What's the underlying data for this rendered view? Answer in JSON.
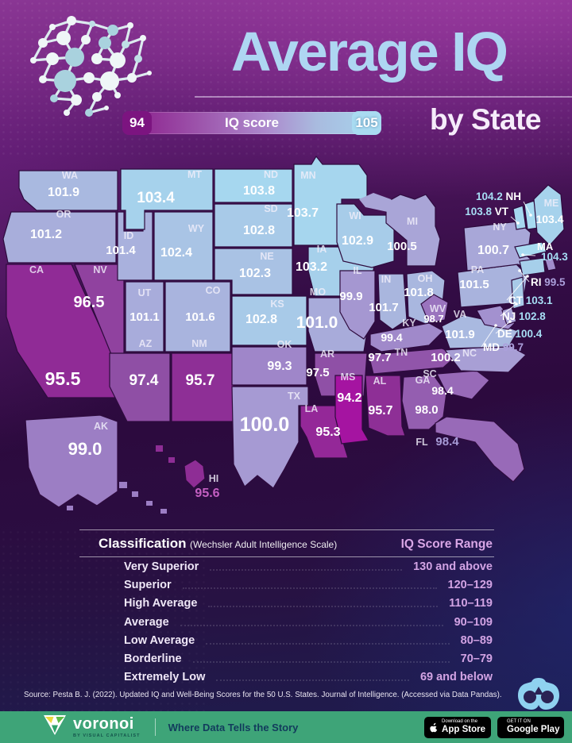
{
  "header": {
    "title": "Average IQ",
    "subtitle": "by State",
    "legend": {
      "min": "94",
      "max": "105",
      "label": "IQ score"
    }
  },
  "colors": {
    "title_blue": "#AED6F2",
    "scale_low": "#A810A2",
    "scale_high": "#ABDFF4",
    "footer_green": "#3EA478",
    "range_pink": "#D2A3E4"
  },
  "chart_data": {
    "type": "choropleth-map",
    "title": "Average IQ by State",
    "legend_label": "IQ score",
    "scale": {
      "min": 94,
      "max": 105
    },
    "states": [
      {
        "abbr": "WA",
        "value": 101.9
      },
      {
        "abbr": "OR",
        "value": 101.2
      },
      {
        "abbr": "CA",
        "value": 95.5
      },
      {
        "abbr": "NV",
        "value": 96.5
      },
      {
        "abbr": "ID",
        "value": 101.4
      },
      {
        "abbr": "MT",
        "value": 103.4
      },
      {
        "abbr": "WY",
        "value": 102.4
      },
      {
        "abbr": "UT",
        "value": 101.1
      },
      {
        "abbr": "CO",
        "value": 101.6
      },
      {
        "abbr": "AZ",
        "value": 97.4
      },
      {
        "abbr": "NM",
        "value": 95.7
      },
      {
        "abbr": "ND",
        "value": 103.8
      },
      {
        "abbr": "SD",
        "value": 102.8
      },
      {
        "abbr": "NE",
        "value": 102.3
      },
      {
        "abbr": "KS",
        "value": 102.8
      },
      {
        "abbr": "OK",
        "value": 99.3
      },
      {
        "abbr": "TX",
        "value": 100.0
      },
      {
        "abbr": "MN",
        "value": 103.7
      },
      {
        "abbr": "IA",
        "value": 103.2
      },
      {
        "abbr": "MO",
        "value": 101.0
      },
      {
        "abbr": "AR",
        "value": 97.5
      },
      {
        "abbr": "LA",
        "value": 95.3
      },
      {
        "abbr": "WI",
        "value": 102.9
      },
      {
        "abbr": "IL",
        "value": 99.9
      },
      {
        "abbr": "MI",
        "value": 100.5
      },
      {
        "abbr": "IN",
        "value": 101.7
      },
      {
        "abbr": "OH",
        "value": 101.8
      },
      {
        "abbr": "KY",
        "value": 99.4
      },
      {
        "abbr": "TN",
        "value": 97.7
      },
      {
        "abbr": "MS",
        "value": 94.2
      },
      {
        "abbr": "AL",
        "value": 95.7
      },
      {
        "abbr": "GA",
        "value": 98.0
      },
      {
        "abbr": "FL",
        "value": 98.4
      },
      {
        "abbr": "SC",
        "value": 98.4
      },
      {
        "abbr": "NC",
        "value": 100.2
      },
      {
        "abbr": "VA",
        "value": 101.9
      },
      {
        "abbr": "WV",
        "value": 98.7
      },
      {
        "abbr": "MD",
        "value": 99.7
      },
      {
        "abbr": "DE",
        "value": 100.4
      },
      {
        "abbr": "PA",
        "value": 101.5
      },
      {
        "abbr": "NJ",
        "value": 102.8
      },
      {
        "abbr": "NY",
        "value": 100.7
      },
      {
        "abbr": "CT",
        "value": 103.1
      },
      {
        "abbr": "RI",
        "value": 99.5
      },
      {
        "abbr": "MA",
        "value": 104.3
      },
      {
        "abbr": "VT",
        "value": 103.8
      },
      {
        "abbr": "NH",
        "value": 104.2
      },
      {
        "abbr": "ME",
        "value": 103.4
      },
      {
        "abbr": "AK",
        "value": 99.0
      },
      {
        "abbr": "HI",
        "value": 95.6
      }
    ]
  },
  "table": {
    "title": "Classification",
    "title_note": "(Wechsler Adult Intelligence Scale)",
    "range_header": "IQ Score Range",
    "rows": [
      {
        "label": "Very Superior",
        "range": "130 and above"
      },
      {
        "label": "Superior",
        "range": "120–129"
      },
      {
        "label": "High Average",
        "range": "110–119"
      },
      {
        "label": "Average",
        "range": "90–109"
      },
      {
        "label": "Low Average",
        "range": "80–89"
      },
      {
        "label": "Borderline",
        "range": "70–79"
      },
      {
        "label": "Extremely Low",
        "range": "69 and below"
      }
    ]
  },
  "source": "Source: Pesta B. J. (2022). Updated IQ and Well-Being Scores for the 50 U.S. States. Journal of Intelligence. (Accessed via Data Pandas).",
  "footer": {
    "brand": "voronoi",
    "brand_byline": "BY VISUAL CAPITALIST",
    "tagline": "Where Data Tells the Story",
    "appstore_small": "Download on the",
    "appstore_big": "App Store",
    "googleplay_small": "GET IT ON",
    "googleplay_big": "Google Play"
  }
}
